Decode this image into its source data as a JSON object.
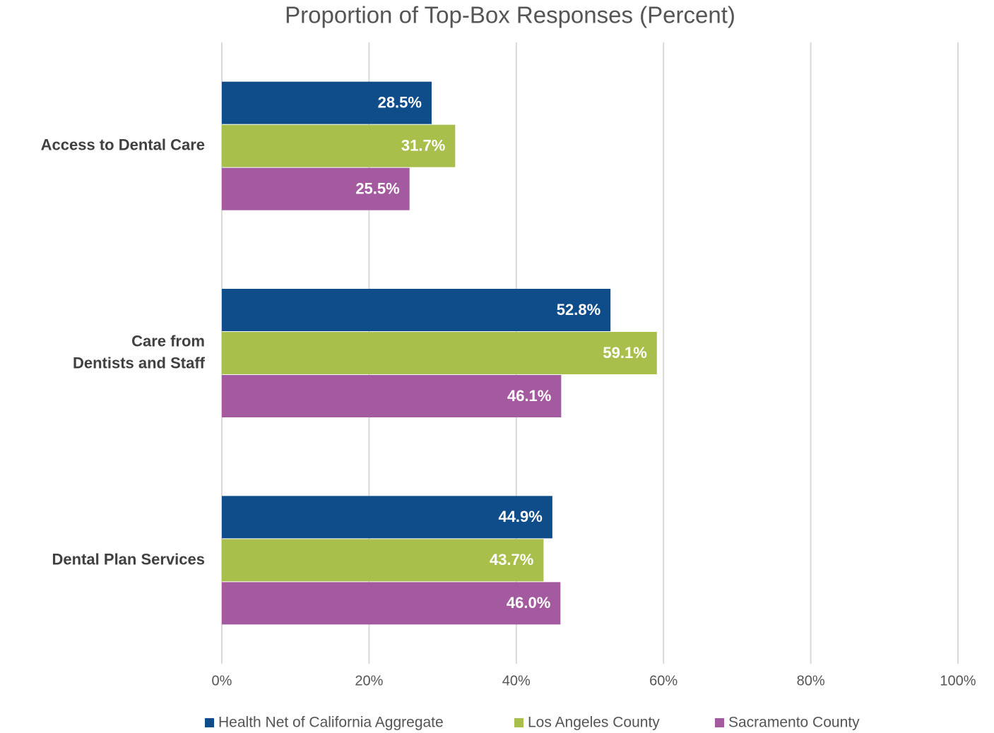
{
  "chart_data": {
    "type": "bar",
    "orientation": "horizontal",
    "title": "Proportion of Top-Box Responses (Percent)",
    "categories": [
      "Access to Dental Care",
      "Care from\nDentists and Staff",
      "Dental Plan Services"
    ],
    "series": [
      {
        "name": "Health Net of California Aggregate",
        "color": "#0f4c8a",
        "values": [
          28.5,
          52.8,
          44.9
        ],
        "value_labels": [
          "28.5%",
          "52.8%",
          "44.9%"
        ]
      },
      {
        "name": "Los Angeles County",
        "color": "#a9bf4b",
        "values": [
          31.7,
          59.1,
          43.7
        ],
        "value_labels": [
          "31.7%",
          "59.1%",
          "43.7%"
        ]
      },
      {
        "name": "Sacramento County",
        "color": "#a45a9f",
        "values": [
          25.5,
          46.1,
          46.0
        ],
        "value_labels": [
          "25.5%",
          "46.1%",
          "46.0%"
        ]
      }
    ],
    "xlim": [
      0,
      100
    ],
    "xticks": [
      {
        "value": 0,
        "label": "0%"
      },
      {
        "value": 20,
        "label": "20%"
      },
      {
        "value": 40,
        "label": "40%"
      },
      {
        "value": 60,
        "label": "60%"
      },
      {
        "value": 80,
        "label": "80%"
      },
      {
        "value": 100,
        "label": "100%"
      }
    ],
    "grid": true,
    "legend": "bottom"
  }
}
